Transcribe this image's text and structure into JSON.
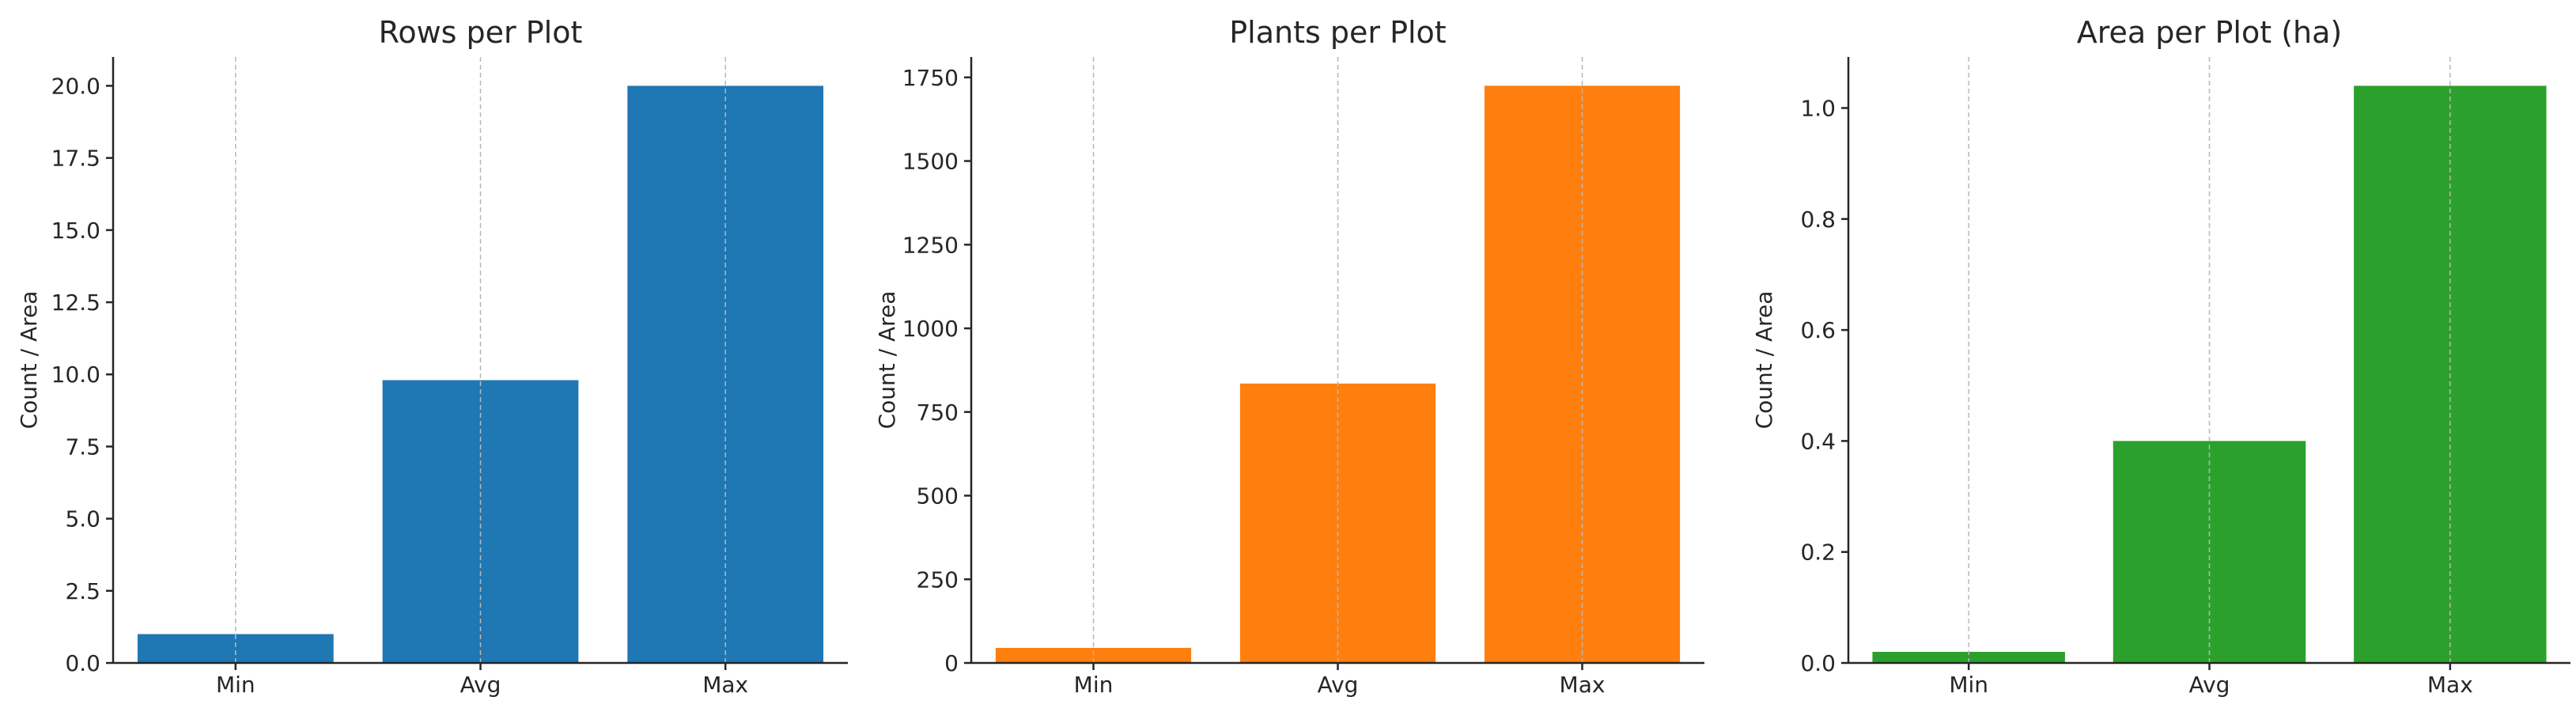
{
  "chart_data": [
    {
      "type": "bar",
      "title": "Rows per Plot",
      "ylabel": "Count / Area",
      "xlabel": "",
      "categories": [
        "Min",
        "Avg",
        "Max"
      ],
      "values": [
        1,
        9.8,
        20
      ],
      "ylim": [
        0,
        21
      ],
      "yticks": [
        "0.0",
        "2.5",
        "5.0",
        "7.5",
        "10.0",
        "12.5",
        "15.0",
        "17.5",
        "20.0"
      ],
      "ytick_values": [
        0,
        2.5,
        5,
        7.5,
        10,
        12.5,
        15,
        17.5,
        20
      ],
      "color": "#1f77b4",
      "grid": "x-dashed"
    },
    {
      "type": "bar",
      "title": "Plants per Plot",
      "ylabel": "Count / Area",
      "xlabel": "",
      "categories": [
        "Min",
        "Avg",
        "Max"
      ],
      "values": [
        45,
        835,
        1725
      ],
      "ylim": [
        0,
        1811
      ],
      "yticks": [
        "0",
        "250",
        "500",
        "750",
        "1000",
        "1250",
        "1500",
        "1750"
      ],
      "ytick_values": [
        0,
        250,
        500,
        750,
        1000,
        1250,
        1500,
        1750
      ],
      "color": "#ff7f0e",
      "grid": "x-dashed"
    },
    {
      "type": "bar",
      "title": "Area per Plot (ha)",
      "ylabel": "Count / Area",
      "xlabel": "",
      "categories": [
        "Min",
        "Avg",
        "Max"
      ],
      "values": [
        0.02,
        0.4,
        1.04
      ],
      "ylim": [
        0,
        1.092
      ],
      "yticks": [
        "0.0",
        "0.2",
        "0.4",
        "0.6",
        "0.8",
        "1.0"
      ],
      "ytick_values": [
        0,
        0.2,
        0.4,
        0.6,
        0.8,
        1.0
      ],
      "color": "#2ca02c",
      "grid": "x-dashed"
    }
  ]
}
